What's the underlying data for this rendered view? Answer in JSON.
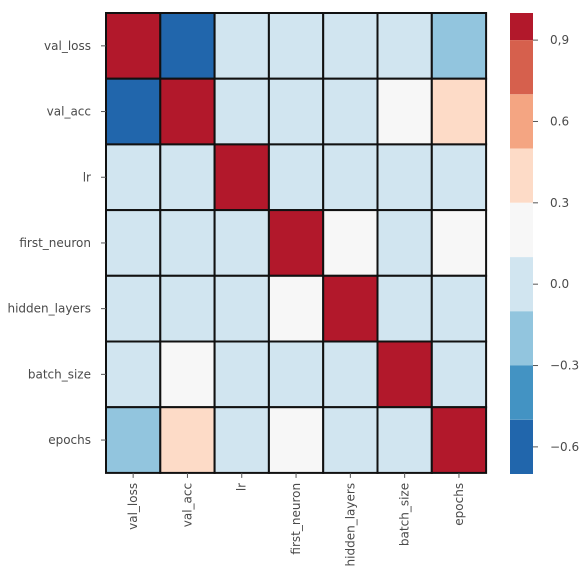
{
  "chart_data": {
    "type": "heatmap",
    "title": "",
    "xlabel": "",
    "ylabel": "",
    "rows": [
      "val_loss",
      "val_acc",
      "lr",
      "first_neuron",
      "hidden_layers",
      "batch_size",
      "epochs"
    ],
    "cols": [
      "val_loss",
      "val_acc",
      "lr",
      "first_neuron",
      "hidden_layers",
      "batch_size",
      "epochs"
    ],
    "values": [
      [
        1.0,
        -0.64,
        -0.02,
        -0.03,
        -0.03,
        -0.02,
        -0.23
      ],
      [
        -0.64,
        1.0,
        -0.02,
        -0.03,
        -0.03,
        0.12,
        0.3
      ],
      [
        -0.02,
        -0.02,
        1.0,
        -0.02,
        -0.02,
        -0.02,
        -0.02
      ],
      [
        -0.03,
        -0.03,
        -0.02,
        1.0,
        0.13,
        -0.02,
        0.12
      ],
      [
        -0.03,
        -0.03,
        -0.02,
        0.13,
        1.0,
        -0.02,
        -0.02
      ],
      [
        -0.02,
        0.12,
        -0.02,
        -0.02,
        -0.02,
        1.0,
        -0.02
      ],
      [
        -0.23,
        0.3,
        -0.02,
        0.12,
        -0.02,
        -0.02,
        1.0
      ]
    ],
    "colorbar": {
      "vmin": -0.7,
      "vmax": 1.0,
      "ticks": [
        0.9,
        0.6,
        0.3,
        0.0,
        -0.3,
        -0.6
      ],
      "tick_labels": [
        "0,9",
        "0.6",
        "0.3",
        "0.0",
        "−0.3",
        "−0.6"
      ],
      "bins": [
        {
          "from": 0.9,
          "to": 1.0,
          "color": "#b2182b"
        },
        {
          "from": 0.7,
          "to": 0.9,
          "color": "#d6604d"
        },
        {
          "from": 0.5,
          "to": 0.7,
          "color": "#f4a582"
        },
        {
          "from": 0.3,
          "to": 0.5,
          "color": "#fddbc7"
        },
        {
          "from": 0.1,
          "to": 0.3,
          "color": "#f7f7f7"
        },
        {
          "from": -0.1,
          "to": 0.1,
          "color": "#d1e5f0"
        },
        {
          "from": -0.3,
          "to": -0.1,
          "color": "#92c5de"
        },
        {
          "from": -0.5,
          "to": -0.3,
          "color": "#4393c3"
        },
        {
          "from": -0.7,
          "to": -0.5,
          "color": "#2166ac"
        }
      ]
    },
    "grid": true,
    "legend": "right"
  }
}
